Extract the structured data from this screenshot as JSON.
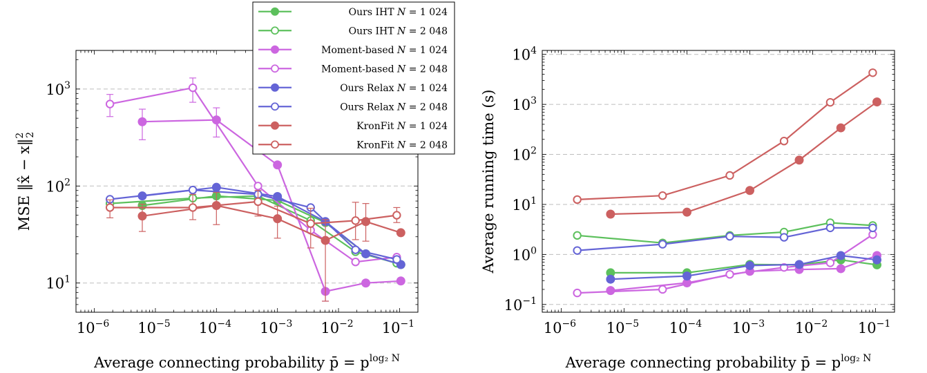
{
  "chart_data": [
    {
      "type": "line",
      "xscale": "log",
      "yscale": "log",
      "xlim": [
        5e-07,
        0.2
      ],
      "ylim": [
        5,
        2500
      ],
      "xlabel": "Average connecting probability p̄ = p^{log₂ N}",
      "ylabel": "MSE ‖x̂ − x‖₂²",
      "xticks": [
        1e-06,
        1e-05,
        0.0001,
        0.001,
        0.01,
        0.1
      ],
      "xtick_labels": [
        "10^{-6}",
        "10^{-5}",
        "10^{-4}",
        "10^{-3}",
        "10^{-2}",
        "10^{-1}"
      ],
      "yticks": [
        10,
        100,
        1000
      ],
      "ytick_labels": [
        "10^{1}",
        "10^{2}",
        "10^{3}"
      ],
      "grid": "y-major dashed",
      "legend_position": "top-right",
      "series": [
        {
          "name": "Ours IHT N = 1 024",
          "color": "#5cc05c",
          "marker": "filled",
          "x": [
            6.1e-06,
            0.0001,
            0.001,
            0.0061,
            0.028,
            0.105
          ],
          "y": [
            63,
            79,
            71,
            42,
            20,
            15.5
          ]
        },
        {
          "name": "Ours IHT N = 2 048",
          "color": "#5cc05c",
          "marker": "open",
          "x": [
            1.8e-06,
            4.1e-05,
            0.00048,
            0.0035,
            0.019,
            0.09
          ],
          "y": [
            66,
            75,
            79,
            44,
            21,
            16
          ]
        },
        {
          "name": "Moment-based N = 1 024",
          "color": "#cc66e0",
          "marker": "filled",
          "x": [
            6.1e-06,
            0.0001,
            0.001,
            0.0061,
            0.028,
            0.105
          ],
          "y": [
            460,
            480,
            165,
            8.2,
            10,
            10.5
          ],
          "err_low": [
            300,
            320,
            null,
            6.5,
            null,
            null
          ],
          "err_high": [
            620,
            640,
            null,
            null,
            null,
            null
          ]
        },
        {
          "name": "Moment-based N = 2 048",
          "color": "#cc66e0",
          "marker": "open",
          "x": [
            1.8e-06,
            4.1e-05,
            0.00048,
            0.0035,
            0.019,
            0.09
          ],
          "y": [
            700,
            1030,
            100,
            35,
            16.5,
            18.5
          ],
          "err_low": [
            520,
            730,
            null,
            null,
            null,
            null
          ],
          "err_high": [
            880,
            1300,
            null,
            null,
            null,
            null
          ]
        },
        {
          "name": "Ours Relax N = 1 024",
          "color": "#6464d6",
          "marker": "filled",
          "x": [
            6.1e-06,
            0.0001,
            0.001,
            0.0061,
            0.028,
            0.105
          ],
          "y": [
            79,
            97,
            78,
            43,
            20,
            15.5
          ]
        },
        {
          "name": "Ours Relax N = 2 048",
          "color": "#6464d6",
          "marker": "open",
          "x": [
            1.8e-06,
            4.1e-05,
            0.00048,
            0.0035,
            0.019,
            0.09
          ],
          "y": [
            73,
            91,
            82,
            60,
            22,
            17.5
          ]
        },
        {
          "name": "KronFit N = 1 024",
          "color": "#cc6060",
          "marker": "filled",
          "x": [
            6.1e-06,
            0.0001,
            0.001,
            0.0061,
            0.028,
            0.105
          ],
          "y": [
            49,
            63,
            46,
            27.5,
            43,
            33
          ],
          "err_low": [
            34,
            40,
            29,
            6.5,
            27,
            null
          ],
          "err_high": [
            65,
            86,
            62,
            45,
            66,
            null
          ]
        },
        {
          "name": "KronFit N = 2 048",
          "color": "#cc6060",
          "marker": "open",
          "x": [
            1.8e-06,
            4.1e-05,
            0.00048,
            0.0035,
            0.019,
            0.09
          ],
          "y": [
            60,
            60,
            69,
            41,
            44,
            50
          ],
          "err_low": [
            47,
            45,
            49,
            23,
            28,
            42
          ],
          "err_high": [
            72,
            82,
            90,
            59,
            68,
            60
          ]
        }
      ]
    },
    {
      "type": "line",
      "xscale": "log",
      "yscale": "log",
      "xlim": [
        5e-07,
        0.2
      ],
      "ylim": [
        0.07,
        12000
      ],
      "xlabel": "Average connecting probability p̄ = p^{log₂ N}",
      "ylabel": "Average running time (s)",
      "xticks": [
        1e-06,
        1e-05,
        0.0001,
        0.001,
        0.01,
        0.1
      ],
      "xtick_labels": [
        "10^{-6}",
        "10^{-5}",
        "10^{-4}",
        "10^{-3}",
        "10^{-2}",
        "10^{-1}"
      ],
      "yticks": [
        0.1,
        1,
        10,
        100,
        1000,
        10000
      ],
      "ytick_labels": [
        "10^{-1}",
        "10^{0}",
        "10^{1}",
        "10^{2}",
        "10^{3}",
        "10^{4}"
      ],
      "grid": "y-major dashed",
      "series": [
        {
          "name": "Ours IHT N = 1 024",
          "color": "#5cc05c",
          "marker": "filled",
          "x": [
            6.1e-06,
            0.0001,
            0.001,
            0.0061,
            0.028,
            0.105
          ],
          "y": [
            0.43,
            0.43,
            0.63,
            0.62,
            0.78,
            0.62
          ]
        },
        {
          "name": "Ours IHT N = 2 048",
          "color": "#5cc05c",
          "marker": "open",
          "x": [
            1.8e-06,
            4.1e-05,
            0.00048,
            0.0035,
            0.019,
            0.09
          ],
          "y": [
            2.4,
            1.7,
            2.4,
            2.8,
            4.3,
            3.8
          ]
        },
        {
          "name": "Moment-based N = 1 024",
          "color": "#cc66e0",
          "marker": "filled",
          "x": [
            6.1e-06,
            0.0001,
            0.001,
            0.0061,
            0.028,
            0.105
          ],
          "y": [
            0.19,
            0.27,
            0.46,
            0.5,
            0.52,
            0.95
          ]
        },
        {
          "name": "Moment-based N = 2 048",
          "color": "#cc66e0",
          "marker": "open",
          "x": [
            1.8e-06,
            4.1e-05,
            0.00048,
            0.0035,
            0.019,
            0.09
          ],
          "y": [
            0.17,
            0.2,
            0.4,
            0.55,
            0.68,
            2.5
          ]
        },
        {
          "name": "Ours Relax N = 1 024",
          "color": "#6464d6",
          "marker": "filled",
          "x": [
            6.1e-06,
            0.0001,
            0.001,
            0.0061,
            0.028,
            0.105
          ],
          "y": [
            0.32,
            0.37,
            0.6,
            0.63,
            0.95,
            0.78
          ]
        },
        {
          "name": "Ours Relax N = 2 048",
          "color": "#6464d6",
          "marker": "open",
          "x": [
            1.8e-06,
            4.1e-05,
            0.00048,
            0.0035,
            0.019,
            0.09
          ],
          "y": [
            1.2,
            1.6,
            2.3,
            2.2,
            3.4,
            3.4
          ]
        },
        {
          "name": "KronFit N = 1 024",
          "color": "#cc6060",
          "marker": "filled",
          "x": [
            6.1e-06,
            0.0001,
            0.001,
            0.0061,
            0.028,
            0.105
          ],
          "y": [
            6.4,
            7.0,
            19,
            77,
            340,
            1120
          ]
        },
        {
          "name": "KronFit N = 2 048",
          "color": "#cc6060",
          "marker": "open",
          "x": [
            1.8e-06,
            4.1e-05,
            0.00048,
            0.0035,
            0.019,
            0.09
          ],
          "y": [
            12.5,
            15,
            38,
            185,
            1100,
            4300
          ]
        }
      ]
    }
  ],
  "legend": {
    "entries": [
      {
        "method": "Ours IHT",
        "N": "1 024",
        "color": "#5cc05c",
        "marker": "filled"
      },
      {
        "method": "Ours IHT",
        "N": "2 048",
        "color": "#5cc05c",
        "marker": "open"
      },
      {
        "method": "Moment-based",
        "N": "1 024",
        "color": "#cc66e0",
        "marker": "filled"
      },
      {
        "method": "Moment-based",
        "N": "2 048",
        "color": "#cc66e0",
        "marker": "open"
      },
      {
        "method": "Ours Relax",
        "N": "1 024",
        "color": "#6464d6",
        "marker": "filled"
      },
      {
        "method": "Ours Relax",
        "N": "2 048",
        "color": "#6464d6",
        "marker": "open"
      },
      {
        "method": "KronFit",
        "N": "1 024",
        "color": "#cc6060",
        "marker": "filled"
      },
      {
        "method": "KronFit",
        "N": "2 048",
        "color": "#cc6060",
        "marker": "open"
      }
    ]
  }
}
